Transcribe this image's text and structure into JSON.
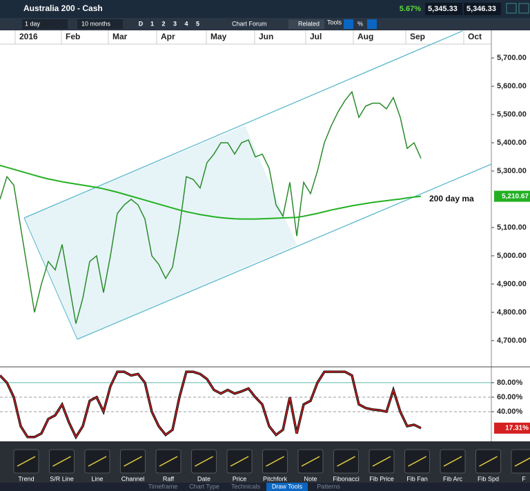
{
  "header": {
    "title": "Australia 200 - Cash",
    "change": "5.67%",
    "bid": "5,345.33",
    "ask": "5,346.33"
  },
  "toolbar": {
    "interval": "1 day",
    "range": "10 months",
    "buttons": [
      "D",
      "1",
      "2",
      "3",
      "4",
      "5"
    ],
    "forum": "Chart Forum",
    "related": "Related",
    "tools": "Tools",
    "percent": "%"
  },
  "months": [
    "2016",
    "Feb",
    "Mar",
    "Apr",
    "May",
    "Jun",
    "Jul",
    "Aug",
    "Sep",
    "Oct"
  ],
  "chart_data": [
    {
      "type": "line",
      "ylim": [
        4607,
        5749
      ],
      "yticks": [
        {
          "value": 5700,
          "label": "5,700.00"
        },
        {
          "value": 5600,
          "label": "5,600.00"
        },
        {
          "value": 5500,
          "label": "5,500.00"
        },
        {
          "value": 5400,
          "label": "5,400.00"
        },
        {
          "value": 5300,
          "label": "5,300.00"
        },
        {
          "value": 5100,
          "label": "5,100.00"
        },
        {
          "value": 5000,
          "label": "5,000.00"
        },
        {
          "value": 4900,
          "label": "4,900.00"
        },
        {
          "value": 4800,
          "label": "4,800.00"
        },
        {
          "value": 4700,
          "label": "4,700.00"
        }
      ],
      "annotation": "200 day ma",
      "series": [
        {
          "color": "#2a8a2a",
          "values": [
            5200,
            5280,
            5250,
            5100,
            4950,
            4800,
            4900,
            4980,
            4950,
            5040,
            4900,
            4760,
            4850,
            4980,
            5000,
            4870,
            5000,
            5150,
            5180,
            5200,
            5180,
            5130,
            5000,
            4970,
            4920,
            4960,
            5100,
            5280,
            5270,
            5240,
            5330,
            5360,
            5400,
            5400,
            5360,
            5400,
            5410,
            5350,
            5360,
            5310,
            5180,
            5140,
            5260,
            5070,
            5260,
            5220,
            5300,
            5400,
            5460,
            5510,
            5550,
            5580,
            5490,
            5530,
            5540,
            5540,
            5520,
            5560,
            5490,
            5380,
            5400,
            5345
          ]
        },
        {
          "name": "200 day ma",
          "color": "#22b022",
          "values": [
            5320,
            5313,
            5306,
            5299,
            5292,
            5285,
            5278,
            5272,
            5267,
            5262,
            5258,
            5254,
            5250,
            5246,
            5242,
            5237,
            5231,
            5225,
            5218,
            5211,
            5204,
            5197,
            5190,
            5183,
            5176,
            5169,
            5162,
            5156,
            5151,
            5146,
            5142,
            5138,
            5135,
            5133,
            5131,
            5130,
            5130,
            5130,
            5131,
            5132,
            5133,
            5134,
            5135,
            5136,
            5140,
            5145,
            5150,
            5156,
            5162,
            5167,
            5172,
            5177,
            5181,
            5185,
            5189,
            5192,
            5195,
            5198,
            5201,
            5205,
            5208,
            5210.67
          ],
          "last_label": "5,210.67"
        }
      ]
    },
    {
      "type": "line",
      "ylim": [
        1,
        98
      ],
      "yticks": [
        {
          "value": 80,
          "label": "80.00%"
        },
        {
          "value": 60,
          "label": "60.00%"
        },
        {
          "value": 40,
          "label": "40.00%"
        }
      ],
      "series": [
        {
          "color": "#d42020",
          "values": [
            90,
            80,
            60,
            20,
            5,
            5,
            10,
            30,
            35,
            50,
            25,
            5,
            20,
            55,
            60,
            40,
            75,
            95,
            95,
            90,
            92,
            80,
            40,
            20,
            8,
            15,
            60,
            95,
            95,
            92,
            85,
            70,
            65,
            70,
            65,
            68,
            72,
            60,
            50,
            20,
            8,
            15,
            60,
            10,
            50,
            55,
            80,
            95,
            95,
            95,
            95,
            90,
            50,
            45,
            43,
            42,
            40,
            70,
            40,
            20,
            22,
            17.31
          ],
          "last_label": "17.31%"
        }
      ]
    }
  ],
  "tools": [
    "Trend",
    "S/R Line",
    "Line",
    "Channel",
    "Raff",
    "Date",
    "Price",
    "Pitchfork",
    "Note",
    "Fibonacci",
    "Fib Price",
    "Fib Fan",
    "Fib Arc",
    "Fib Spd",
    "F"
  ],
  "tabs": [
    "Timeframe",
    "Chart Type",
    "Technicals",
    "Draw Tools",
    "Patterns"
  ]
}
